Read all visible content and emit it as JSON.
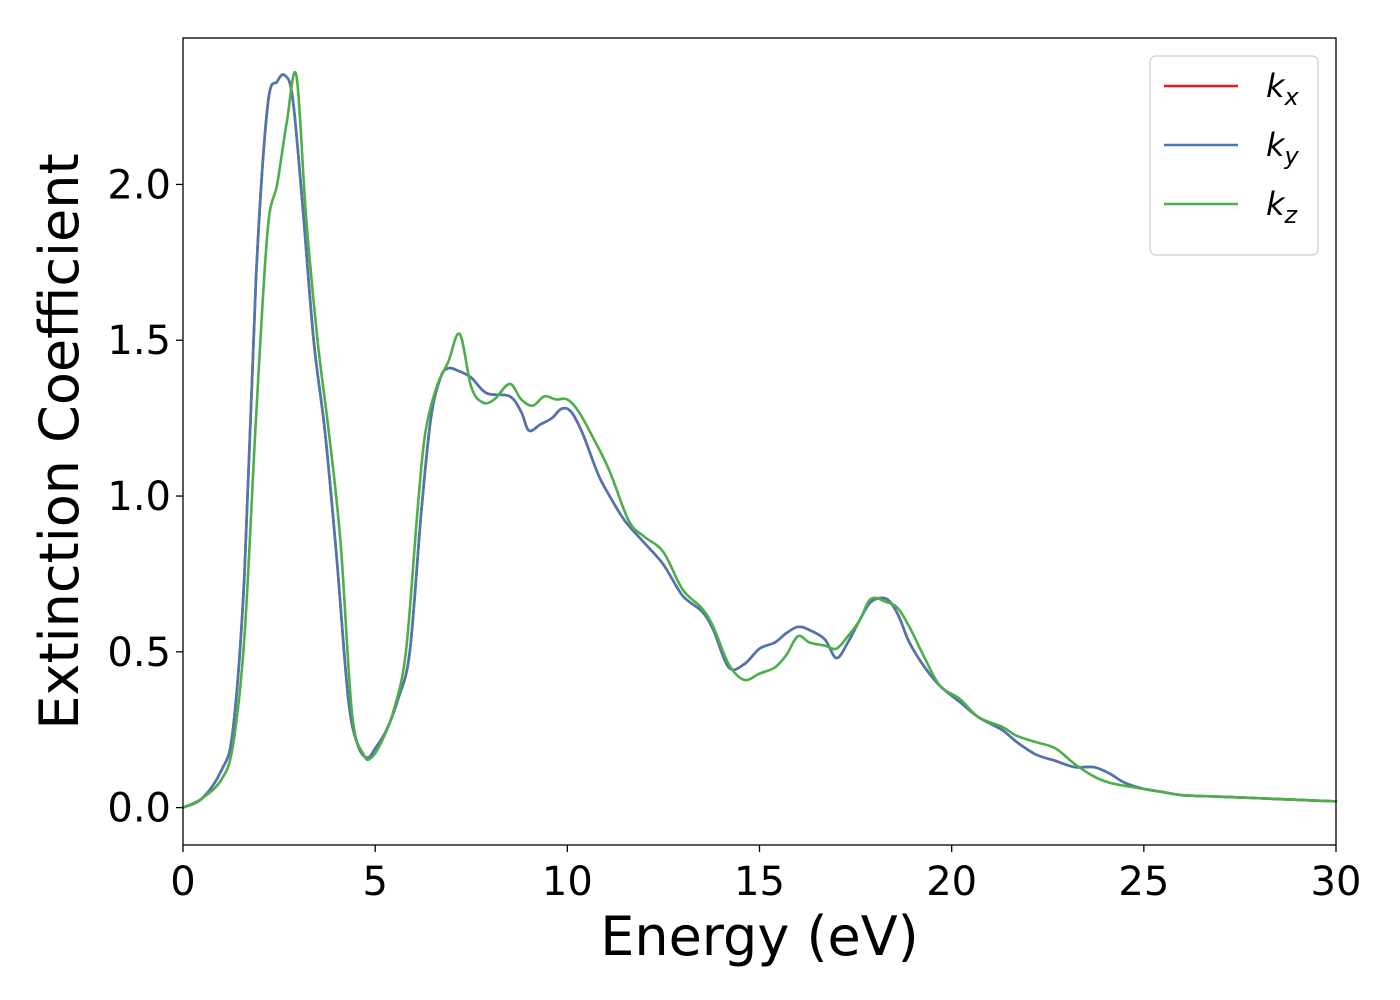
{
  "chart_data": {
    "type": "line",
    "title": "",
    "xlabel": "Energy (eV)",
    "ylabel": "Extinction Coefficient",
    "xlim": [
      0,
      30
    ],
    "ylim": [
      -0.12,
      2.47
    ],
    "xticks": [
      0,
      5,
      10,
      15,
      20,
      25,
      30
    ],
    "xtick_labels": [
      "0",
      "5",
      "10",
      "15",
      "20",
      "25",
      "30"
    ],
    "yticks": [
      0.0,
      0.5,
      1.0,
      1.5,
      2.0
    ],
    "ytick_labels": [
      "0.0",
      "0.5",
      "1.0",
      "1.5",
      "2.0"
    ],
    "grid": false,
    "legend_position": "top-right",
    "series": [
      {
        "name": "k",
        "name_sub": "x",
        "color": "#e41a1c",
        "x": [
          0,
          0.5,
          1.0,
          1.3,
          1.6,
          1.9,
          2.2,
          2.45,
          2.65,
          2.85,
          3.1,
          3.4,
          3.7,
          4.0,
          4.3,
          4.55,
          4.8,
          5.0,
          5.3,
          5.6,
          5.9,
          6.2,
          6.45,
          6.7,
          6.9,
          7.2,
          7.5,
          7.9,
          8.5,
          8.8,
          9.0,
          9.3,
          9.6,
          9.85,
          10.1,
          10.4,
          10.8,
          11.1,
          11.5,
          12.0,
          12.5,
          13.0,
          13.5,
          13.8,
          14.2,
          14.6,
          15.0,
          15.4,
          15.7,
          16.0,
          16.3,
          16.7,
          17.0,
          17.3,
          17.6,
          17.9,
          18.3,
          18.6,
          18.9,
          19.3,
          19.7,
          20.2,
          20.7,
          21.3,
          21.7,
          22.2,
          22.7,
          23.2,
          23.7,
          24.1,
          24.5,
          25.0,
          25.5,
          26.0,
          27.0,
          28.0,
          29.0,
          30.0
        ],
        "y": [
          0.0,
          0.03,
          0.12,
          0.25,
          0.75,
          1.7,
          2.25,
          2.33,
          2.35,
          2.28,
          1.95,
          1.5,
          1.2,
          0.8,
          0.35,
          0.2,
          0.16,
          0.19,
          0.25,
          0.35,
          0.5,
          0.95,
          1.25,
          1.38,
          1.41,
          1.4,
          1.38,
          1.33,
          1.32,
          1.27,
          1.21,
          1.23,
          1.25,
          1.28,
          1.27,
          1.2,
          1.07,
          1.0,
          0.92,
          0.85,
          0.78,
          0.68,
          0.63,
          0.57,
          0.45,
          0.46,
          0.51,
          0.53,
          0.56,
          0.58,
          0.57,
          0.54,
          0.48,
          0.53,
          0.6,
          0.66,
          0.67,
          0.62,
          0.53,
          0.45,
          0.39,
          0.34,
          0.29,
          0.25,
          0.21,
          0.17,
          0.15,
          0.13,
          0.13,
          0.11,
          0.08,
          0.06,
          0.05,
          0.04,
          0.035,
          0.03,
          0.025,
          0.02
        ]
      },
      {
        "name": "k",
        "name_sub": "y",
        "color": "#4c78b0",
        "x": [
          0,
          0.5,
          1.0,
          1.3,
          1.6,
          1.9,
          2.2,
          2.45,
          2.65,
          2.85,
          3.1,
          3.4,
          3.7,
          4.0,
          4.3,
          4.55,
          4.8,
          5.0,
          5.3,
          5.6,
          5.9,
          6.2,
          6.45,
          6.7,
          6.9,
          7.2,
          7.5,
          7.9,
          8.5,
          8.8,
          9.0,
          9.3,
          9.6,
          9.85,
          10.1,
          10.4,
          10.8,
          11.1,
          11.5,
          12.0,
          12.5,
          13.0,
          13.5,
          13.8,
          14.2,
          14.6,
          15.0,
          15.4,
          15.7,
          16.0,
          16.3,
          16.7,
          17.0,
          17.3,
          17.6,
          17.9,
          18.3,
          18.6,
          18.9,
          19.3,
          19.7,
          20.2,
          20.7,
          21.3,
          21.7,
          22.2,
          22.7,
          23.2,
          23.7,
          24.1,
          24.5,
          25.0,
          25.5,
          26.0,
          27.0,
          28.0,
          29.0,
          30.0
        ],
        "y": [
          0.0,
          0.03,
          0.12,
          0.25,
          0.75,
          1.7,
          2.25,
          2.33,
          2.35,
          2.28,
          1.95,
          1.5,
          1.2,
          0.8,
          0.35,
          0.2,
          0.16,
          0.19,
          0.25,
          0.35,
          0.5,
          0.95,
          1.25,
          1.38,
          1.41,
          1.4,
          1.38,
          1.33,
          1.32,
          1.27,
          1.21,
          1.23,
          1.25,
          1.28,
          1.27,
          1.2,
          1.07,
          1.0,
          0.92,
          0.85,
          0.78,
          0.68,
          0.63,
          0.57,
          0.45,
          0.46,
          0.51,
          0.53,
          0.56,
          0.58,
          0.57,
          0.54,
          0.48,
          0.53,
          0.6,
          0.66,
          0.67,
          0.62,
          0.53,
          0.45,
          0.39,
          0.34,
          0.29,
          0.25,
          0.21,
          0.17,
          0.15,
          0.13,
          0.13,
          0.11,
          0.08,
          0.06,
          0.05,
          0.04,
          0.035,
          0.03,
          0.025,
          0.02
        ]
      },
      {
        "name": "k",
        "name_sub": "z",
        "color": "#4daf4a",
        "x": [
          0,
          0.5,
          1.0,
          1.3,
          1.6,
          1.9,
          2.2,
          2.45,
          2.7,
          2.95,
          3.2,
          3.5,
          3.8,
          4.1,
          4.4,
          4.7,
          4.9,
          5.2,
          5.5,
          5.8,
          6.1,
          6.3,
          6.6,
          6.9,
          7.2,
          7.5,
          7.8,
          8.1,
          8.5,
          8.8,
          9.1,
          9.4,
          9.7,
          10.0,
          10.3,
          10.7,
          11.1,
          11.6,
          12.0,
          12.5,
          13.0,
          13.5,
          13.8,
          14.2,
          14.6,
          15.0,
          15.4,
          15.7,
          16.0,
          16.3,
          16.7,
          17.0,
          17.3,
          17.6,
          17.9,
          18.3,
          18.6,
          18.9,
          19.3,
          19.7,
          20.2,
          20.7,
          21.3,
          21.7,
          22.2,
          22.7,
          23.2,
          23.7,
          24.1,
          24.5,
          25.0,
          25.5,
          26.0,
          27.0,
          28.0,
          29.0,
          30.0
        ],
        "y": [
          0.0,
          0.03,
          0.09,
          0.2,
          0.55,
          1.25,
          1.85,
          2.0,
          2.2,
          2.35,
          1.9,
          1.5,
          1.2,
          0.85,
          0.3,
          0.17,
          0.16,
          0.22,
          0.32,
          0.5,
          0.95,
          1.2,
          1.35,
          1.43,
          1.52,
          1.35,
          1.3,
          1.31,
          1.36,
          1.31,
          1.29,
          1.32,
          1.31,
          1.31,
          1.27,
          1.18,
          1.08,
          0.92,
          0.87,
          0.82,
          0.7,
          0.64,
          0.58,
          0.46,
          0.41,
          0.43,
          0.45,
          0.49,
          0.55,
          0.53,
          0.52,
          0.51,
          0.55,
          0.6,
          0.67,
          0.66,
          0.64,
          0.58,
          0.48,
          0.39,
          0.35,
          0.29,
          0.26,
          0.23,
          0.21,
          0.19,
          0.14,
          0.1,
          0.08,
          0.07,
          0.06,
          0.05,
          0.04,
          0.035,
          0.03,
          0.025,
          0.02
        ]
      }
    ]
  }
}
